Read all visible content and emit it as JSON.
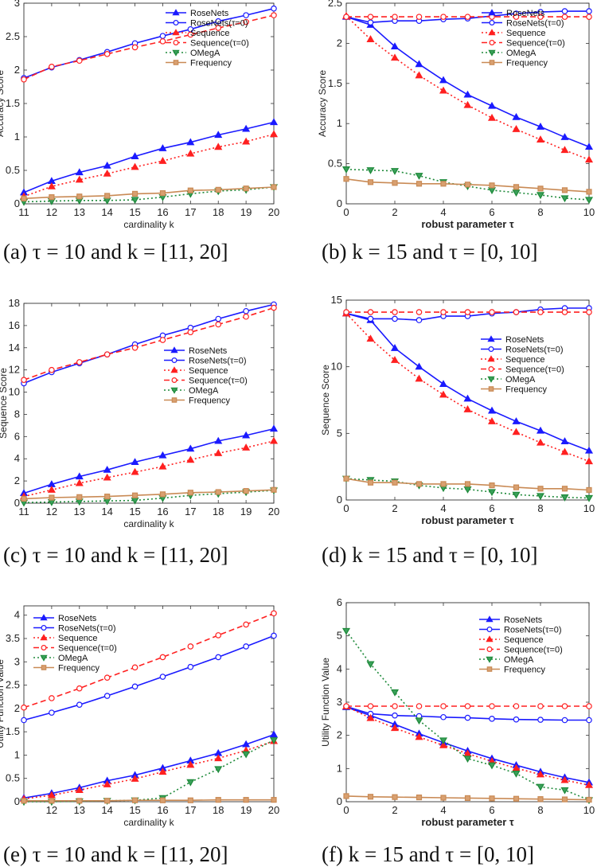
{
  "series_styles": [
    {
      "name": "RoseNets",
      "color": "#1a1aff",
      "dash": "",
      "marker": "tri-up",
      "fill": "#1a1aff"
    },
    {
      "name": "RoseNets(τ=0)",
      "color": "#1a1aff",
      "dash": "",
      "marker": "circle",
      "fill": "none"
    },
    {
      "name": "Sequence",
      "color": "#ff2020",
      "dash": "2,3",
      "marker": "tri-up",
      "fill": "#ff2020"
    },
    {
      "name": "Sequence(τ=0)",
      "color": "#ff2020",
      "dash": "7,4",
      "marker": "circle",
      "fill": "none"
    },
    {
      "name": "OMegA",
      "color": "#1e8a3a",
      "dash": "2,3",
      "marker": "tri-down",
      "fill": "#3aa05a"
    },
    {
      "name": "Frequency",
      "color": "#c98a55",
      "dash": "",
      "marker": "square",
      "fill": "#d9a070"
    }
  ],
  "chart_data": [
    {
      "type": "line",
      "caption": "(a) τ = 10 and k = [11, 20]",
      "xlabel": "cardinality k",
      "ylabel": "Accuracy Score",
      "xlim": [
        11,
        20
      ],
      "ylim": [
        0,
        3
      ],
      "xticks": [
        11,
        12,
        13,
        14,
        15,
        16,
        17,
        18,
        19,
        20
      ],
      "yticks": [
        0,
        0.5,
        1,
        1.5,
        2,
        2.5,
        3
      ],
      "x": [
        11,
        12,
        13,
        14,
        15,
        16,
        17,
        18,
        19,
        20
      ],
      "legend": "top-center",
      "series": [
        {
          "name": "RoseNets",
          "values": [
            0.17,
            0.34,
            0.47,
            0.57,
            0.71,
            0.83,
            0.92,
            1.03,
            1.12,
            1.22
          ]
        },
        {
          "name": "RoseNets(τ=0)",
          "values": [
            1.88,
            2.04,
            2.15,
            2.27,
            2.4,
            2.51,
            2.61,
            2.73,
            2.82,
            2.92
          ]
        },
        {
          "name": "Sequence",
          "values": [
            0.11,
            0.26,
            0.36,
            0.45,
            0.55,
            0.64,
            0.75,
            0.85,
            0.93,
            1.04
          ]
        },
        {
          "name": "Sequence(τ=0)",
          "values": [
            1.86,
            2.05,
            2.14,
            2.24,
            2.34,
            2.43,
            2.53,
            2.63,
            2.72,
            2.82
          ]
        },
        {
          "name": "OMegA",
          "values": [
            0.03,
            0.04,
            0.05,
            0.05,
            0.06,
            0.1,
            0.15,
            0.19,
            0.21,
            0.25
          ]
        },
        {
          "name": "Frequency",
          "values": [
            0.08,
            0.1,
            0.11,
            0.12,
            0.15,
            0.16,
            0.2,
            0.21,
            0.23,
            0.25
          ]
        }
      ]
    },
    {
      "type": "line",
      "caption": "(b) k = 15 and τ = [0, 10]",
      "xlabel": "robust parameter τ",
      "ylabel": "Accuracy Score",
      "xlim": [
        0,
        10
      ],
      "ylim": [
        0,
        2.5
      ],
      "xticks": [
        0,
        2,
        4,
        6,
        8,
        10
      ],
      "yticks": [
        0,
        0.5,
        1,
        1.5,
        2,
        2.5
      ],
      "x": [
        0,
        1,
        2,
        3,
        4,
        5,
        6,
        7,
        8,
        9,
        10
      ],
      "legend": "top-right",
      "series": [
        {
          "name": "RoseNets",
          "values": [
            2.33,
            2.23,
            1.96,
            1.74,
            1.54,
            1.36,
            1.22,
            1.08,
            0.96,
            0.83,
            0.71
          ]
        },
        {
          "name": "RoseNets(τ=0)",
          "values": [
            2.33,
            2.26,
            2.28,
            2.28,
            2.3,
            2.31,
            2.34,
            2.37,
            2.39,
            2.4,
            2.4
          ]
        },
        {
          "name": "Sequence",
          "values": [
            2.34,
            2.05,
            1.82,
            1.6,
            1.41,
            1.23,
            1.07,
            0.93,
            0.8,
            0.67,
            0.55
          ]
        },
        {
          "name": "Sequence(τ=0)",
          "values": [
            2.33,
            2.33,
            2.33,
            2.33,
            2.33,
            2.33,
            2.33,
            2.33,
            2.33,
            2.33,
            2.33
          ]
        },
        {
          "name": "OMegA",
          "values": [
            0.43,
            0.42,
            0.41,
            0.35,
            0.27,
            0.22,
            0.17,
            0.14,
            0.11,
            0.07,
            0.05
          ]
        },
        {
          "name": "Frequency",
          "values": [
            0.31,
            0.27,
            0.26,
            0.25,
            0.25,
            0.24,
            0.23,
            0.21,
            0.19,
            0.17,
            0.15
          ]
        }
      ]
    },
    {
      "type": "line",
      "caption": "(c) τ = 10 and k = [11, 20]",
      "xlabel": "cardinality k",
      "ylabel": "Sequence Score",
      "xlim": [
        11,
        20
      ],
      "ylim": [
        0,
        18
      ],
      "xticks": [
        11,
        12,
        13,
        14,
        15,
        16,
        17,
        18,
        19,
        20
      ],
      "yticks": [
        0,
        2,
        4,
        6,
        8,
        10,
        12,
        14,
        16,
        18
      ],
      "x": [
        11,
        12,
        13,
        14,
        15,
        16,
        17,
        18,
        19,
        20
      ],
      "legend": "center",
      "series": [
        {
          "name": "RoseNets",
          "values": [
            0.9,
            1.7,
            2.4,
            3.0,
            3.7,
            4.3,
            4.9,
            5.6,
            6.1,
            6.7
          ]
        },
        {
          "name": "RoseNets(τ=0)",
          "values": [
            10.8,
            11.8,
            12.6,
            13.4,
            14.3,
            15.1,
            15.8,
            16.6,
            17.3,
            17.9
          ]
        },
        {
          "name": "Sequence",
          "values": [
            0.6,
            1.2,
            1.8,
            2.3,
            2.8,
            3.3,
            3.9,
            4.5,
            5.0,
            5.6
          ]
        },
        {
          "name": "Sequence(τ=0)",
          "values": [
            11.1,
            12.0,
            12.7,
            13.4,
            14.0,
            14.7,
            15.4,
            16.1,
            16.8,
            17.6
          ]
        },
        {
          "name": "OMegA",
          "values": [
            0.05,
            0.1,
            0.15,
            0.2,
            0.25,
            0.45,
            0.7,
            0.85,
            1.0,
            1.15
          ]
        },
        {
          "name": "Frequency",
          "values": [
            0.4,
            0.5,
            0.55,
            0.6,
            0.7,
            0.8,
            0.95,
            1.0,
            1.1,
            1.2
          ]
        }
      ]
    },
    {
      "type": "line",
      "caption": "(d) k = 15 and τ = [0, 10]",
      "xlabel": "robust parameter τ",
      "ylabel": "Sequence Score",
      "xlim": [
        0,
        10
      ],
      "ylim": [
        0,
        15
      ],
      "xticks": [
        0,
        2,
        4,
        6,
        8,
        10
      ],
      "yticks": [
        0,
        5,
        10,
        15
      ],
      "x": [
        0,
        1,
        2,
        3,
        4,
        5,
        6,
        7,
        8,
        9,
        10
      ],
      "legend": "top-right",
      "series": [
        {
          "name": "RoseNets",
          "values": [
            14.0,
            13.5,
            11.4,
            10.0,
            8.7,
            7.6,
            6.7,
            5.9,
            5.2,
            4.4,
            3.7
          ]
        },
        {
          "name": "RoseNets(τ=0)",
          "values": [
            14.0,
            13.6,
            13.6,
            13.5,
            13.8,
            13.8,
            14.0,
            14.1,
            14.3,
            14.4,
            14.4
          ]
        },
        {
          "name": "Sequence",
          "values": [
            14.0,
            12.1,
            10.5,
            9.1,
            7.9,
            6.8,
            5.9,
            5.1,
            4.3,
            3.6,
            2.9
          ]
        },
        {
          "name": "Sequence(τ=0)",
          "values": [
            14.1,
            14.1,
            14.1,
            14.1,
            14.1,
            14.1,
            14.1,
            14.1,
            14.1,
            14.1,
            14.1
          ]
        },
        {
          "name": "OMegA",
          "values": [
            1.6,
            1.5,
            1.4,
            1.1,
            0.9,
            0.8,
            0.6,
            0.4,
            0.3,
            0.2,
            0.15
          ]
        },
        {
          "name": "Frequency",
          "values": [
            1.6,
            1.3,
            1.3,
            1.2,
            1.2,
            1.2,
            1.1,
            0.95,
            0.85,
            0.85,
            0.75
          ]
        }
      ]
    },
    {
      "type": "line",
      "caption": "(e) τ = 10 and k = [11, 20]",
      "xlabel": "cardinality k",
      "ylabel": "Utility Function Value",
      "xlim": [
        11,
        20
      ],
      "ylim": [
        0,
        4.2
      ],
      "xticks": [
        12,
        13,
        14,
        15,
        16,
        17,
        18,
        19,
        20
      ],
      "yticks": [
        0,
        0.5,
        1,
        1.5,
        2,
        2.5,
        3,
        3.5,
        4
      ],
      "x": [
        11,
        12,
        13,
        14,
        15,
        16,
        17,
        18,
        19,
        20
      ],
      "legend": "top-left",
      "series": [
        {
          "name": "RoseNets",
          "values": [
            0.08,
            0.18,
            0.3,
            0.45,
            0.57,
            0.72,
            0.88,
            1.04,
            1.23,
            1.44
          ]
        },
        {
          "name": "RoseNets(τ=0)",
          "values": [
            1.75,
            1.91,
            2.08,
            2.27,
            2.47,
            2.68,
            2.89,
            3.1,
            3.33,
            3.56
          ]
        },
        {
          "name": "Sequence",
          "values": [
            0.06,
            0.14,
            0.25,
            0.37,
            0.49,
            0.64,
            0.79,
            0.93,
            1.1,
            1.3
          ]
        },
        {
          "name": "Sequence(τ=0)",
          "values": [
            2.02,
            2.22,
            2.43,
            2.66,
            2.88,
            3.1,
            3.33,
            3.57,
            3.8,
            4.04
          ]
        },
        {
          "name": "OMegA",
          "values": [
            0.0,
            0.0,
            0.01,
            0.02,
            0.03,
            0.08,
            0.42,
            0.7,
            1.02,
            1.32
          ]
        },
        {
          "name": "Frequency",
          "values": [
            0.02,
            0.02,
            0.02,
            0.02,
            0.03,
            0.03,
            0.03,
            0.04,
            0.04,
            0.04
          ]
        }
      ]
    },
    {
      "type": "line",
      "caption": "(f) k = 15 and τ = [0, 10]",
      "xlabel": "robust parameter τ",
      "ylabel": "Utility Function Value",
      "xlim": [
        0,
        10
      ],
      "ylim": [
        0,
        6
      ],
      "xticks": [
        0,
        2,
        4,
        6,
        8,
        10
      ],
      "yticks": [
        0,
        1,
        2,
        3,
        4,
        5,
        6
      ],
      "x": [
        0,
        1,
        2,
        3,
        4,
        5,
        6,
        7,
        8,
        9,
        10
      ],
      "legend": "top-right",
      "series": [
        {
          "name": "RoseNets",
          "values": [
            2.85,
            2.6,
            2.33,
            2.05,
            1.78,
            1.53,
            1.3,
            1.1,
            0.9,
            0.73,
            0.58
          ]
        },
        {
          "name": "RoseNets(τ=0)",
          "values": [
            2.87,
            2.65,
            2.6,
            2.58,
            2.55,
            2.53,
            2.5,
            2.48,
            2.47,
            2.46,
            2.46
          ]
        },
        {
          "name": "Sequence",
          "values": [
            2.87,
            2.52,
            2.22,
            1.95,
            1.7,
            1.45,
            1.22,
            1.01,
            0.82,
            0.65,
            0.5
          ]
        },
        {
          "name": "Sequence(τ=0)",
          "values": [
            2.88,
            2.88,
            2.88,
            2.88,
            2.88,
            2.88,
            2.88,
            2.88,
            2.88,
            2.88,
            2.88
          ]
        },
        {
          "name": "OMegA",
          "values": [
            5.15,
            4.15,
            3.3,
            2.45,
            1.85,
            1.3,
            1.1,
            0.85,
            0.45,
            0.35,
            0.05
          ]
        },
        {
          "name": "Frequency",
          "values": [
            0.17,
            0.15,
            0.14,
            0.13,
            0.12,
            0.11,
            0.1,
            0.09,
            0.08,
            0.07,
            0.06
          ]
        }
      ]
    }
  ]
}
